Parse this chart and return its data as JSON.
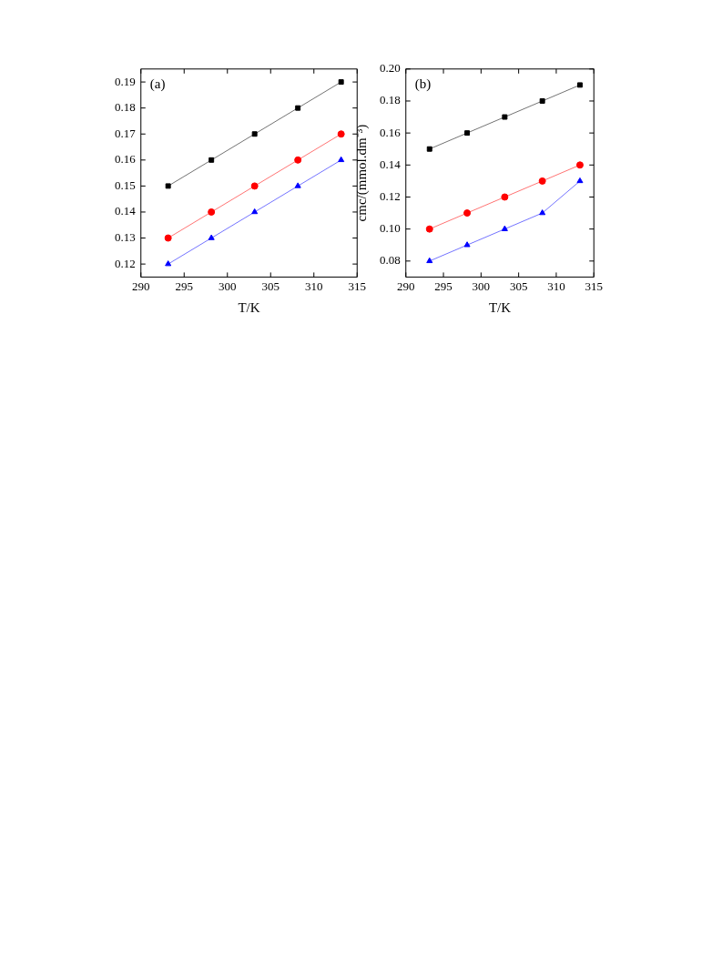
{
  "chart_data": [
    {
      "type": "line",
      "xlabel": "T/K",
      "annotations": [
        "(a)"
      ],
      "xlim": [
        290,
        315
      ],
      "xticks": [
        290,
        295,
        300,
        305,
        310,
        315
      ],
      "ylim": [
        0.115,
        0.195
      ],
      "yticks": [
        0.12,
        0.13,
        0.14,
        0.15,
        0.16,
        0.17,
        0.18,
        0.19
      ],
      "grid": false,
      "legend": false,
      "line_style": "solid",
      "x": [
        293.15,
        298.15,
        303.15,
        308.15,
        313.15
      ],
      "series": [
        {
          "color": "#000000",
          "marker": "square",
          "values": [
            0.15,
            0.16,
            0.17,
            0.18,
            0.19
          ]
        },
        {
          "color": "#ff0000",
          "marker": "circle",
          "values": [
            0.13,
            0.14,
            0.15,
            0.16,
            0.17
          ]
        },
        {
          "color": "#0000ff",
          "marker": "triangle",
          "values": [
            0.12,
            0.13,
            0.14,
            0.15,
            0.16
          ]
        }
      ]
    },
    {
      "type": "line",
      "xlabel": "T/K",
      "ylabel": "cmc/(mmol.dm⁻³)",
      "annotations": [
        "(b)"
      ],
      "xlim": [
        290,
        315
      ],
      "xticks": [
        290,
        295,
        300,
        305,
        310,
        315
      ],
      "ylim": [
        0.07,
        0.2
      ],
      "yticks": [
        {
          "value": 0.08,
          "label": "0.08"
        },
        {
          "value": 0.1,
          "label": "0.10"
        },
        {
          "value": 0.12,
          "label": "0.12"
        },
        {
          "value": 0.14,
          "label": "0.14"
        },
        {
          "value": 0.16,
          "label": "0.16"
        },
        {
          "value": 0.18,
          "label": "0.18"
        },
        {
          "value": 0.2,
          "label": "0.20"
        }
      ],
      "grid": false,
      "legend": false,
      "line_style": "solid",
      "x": [
        293.15,
        298.15,
        303.15,
        308.15,
        313.15
      ],
      "series": [
        {
          "color": "#000000",
          "marker": "square",
          "values": [
            0.15,
            0.16,
            0.17,
            0.18,
            0.19
          ]
        },
        {
          "color": "#ff0000",
          "marker": "circle",
          "values": [
            0.1,
            0.11,
            0.12,
            0.13,
            0.14
          ]
        },
        {
          "color": "#0000ff",
          "marker": "triangle",
          "values": [
            0.08,
            0.09,
            0.1,
            0.11,
            0.13
          ]
        }
      ]
    }
  ]
}
